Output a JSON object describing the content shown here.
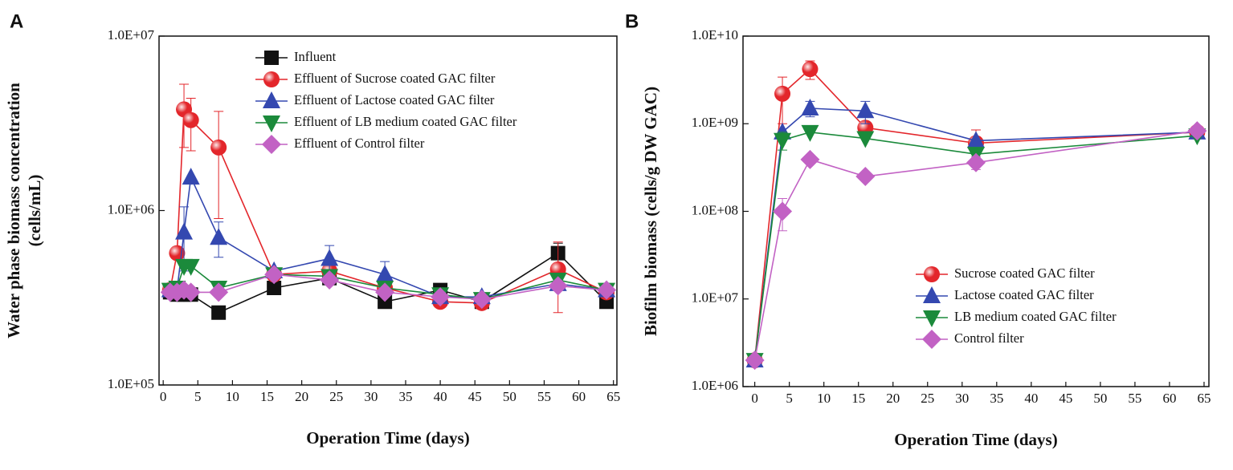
{
  "chart_data": [
    {
      "type": "line",
      "panel": "A",
      "x_label": "Operation Time (days)",
      "y_label": "Water phase biomass concentration (cells/mL)",
      "log_y": true,
      "legend": "upper center",
      "xlim": [
        -0.6,
        65.5
      ],
      "xticks": [
        0,
        5,
        10,
        15,
        20,
        25,
        30,
        35,
        40,
        45,
        50,
        55,
        60,
        65
      ],
      "ylim": [
        100000,
        10000000
      ],
      "yticks": [
        {
          "value": 100000,
          "label": "1.0E+05"
        },
        {
          "value": 1000000,
          "label": "1.0E+06"
        },
        {
          "value": 10000000,
          "label": "1.0E+07"
        }
      ],
      "x": [
        1,
        2,
        3,
        4,
        8,
        16,
        24,
        32,
        40,
        46,
        57,
        64
      ],
      "series": [
        {
          "name": "Influent",
          "color": "#111111",
          "marker": "square",
          "values": [
            340000,
            330000,
            330000,
            330000,
            260000,
            360000,
            410000,
            300000,
            350000,
            300000,
            570000,
            300000
          ],
          "errors": [
            null,
            null,
            null,
            null,
            null,
            null,
            null,
            null,
            null,
            null,
            80000,
            null
          ]
        },
        {
          "name": "Effluent of Sucrose coated GAC filter",
          "color": "#e3262b",
          "marker": "circle",
          "values": [
            350000,
            570000,
            3800000,
            3300000,
            2300000,
            430000,
            450000,
            360000,
            300000,
            295000,
            460000,
            340000
          ],
          "errors": [
            null,
            null,
            1500000,
            1100000,
            1400000,
            null,
            null,
            null,
            null,
            null,
            200000,
            null
          ]
        },
        {
          "name": "Effluent of Lactose coated GAC filter",
          "color": "#3448b0",
          "marker": "triangle-up",
          "values": [
            350000,
            350000,
            750000,
            1550000,
            700000,
            450000,
            530000,
            430000,
            320000,
            320000,
            380000,
            350000
          ],
          "errors": [
            null,
            null,
            300000,
            null,
            160000,
            null,
            100000,
            80000,
            null,
            null,
            null,
            null
          ]
        },
        {
          "name": "Effluent of LB medium coated GAC filter",
          "color": "#1b8a3b",
          "marker": "triangle-down",
          "values": [
            350000,
            360000,
            480000,
            480000,
            360000,
            430000,
            420000,
            360000,
            330000,
            310000,
            400000,
            350000
          ],
          "errors": [
            null,
            null,
            null,
            null,
            null,
            null,
            null,
            null,
            null,
            null,
            null,
            null
          ]
        },
        {
          "name": "Effluent of Control filter",
          "color": "#c262c4",
          "marker": "diamond",
          "values": [
            340000,
            340000,
            350000,
            340000,
            340000,
            430000,
            400000,
            340000,
            320000,
            310000,
            370000,
            350000
          ],
          "errors": [
            null,
            null,
            null,
            null,
            null,
            null,
            null,
            null,
            null,
            null,
            null,
            null
          ]
        }
      ]
    },
    {
      "type": "line",
      "panel": "B",
      "x_label": "Operation Time (days)",
      "y_label": "Biofilm biomass (cells/g DW GAC)",
      "log_y": true,
      "legend": "lower right",
      "xlim": [
        -1.7,
        65.7
      ],
      "xticks": [
        0,
        5,
        10,
        15,
        20,
        25,
        30,
        35,
        40,
        45,
        50,
        55,
        60,
        65
      ],
      "ylim": [
        1000000,
        10000000000
      ],
      "yticks": [
        {
          "value": 1000000,
          "label": "1.0E+06"
        },
        {
          "value": 10000000,
          "label": "1.0E+07"
        },
        {
          "value": 100000000,
          "label": "1.0E+08"
        },
        {
          "value": 1000000000,
          "label": "1.0E+09"
        },
        {
          "value": 10000000000,
          "label": "1.0E+10"
        }
      ],
      "x": [
        0,
        4,
        8,
        16,
        32,
        64
      ],
      "series": [
        {
          "name": "Sucrose coated GAC filter",
          "color": "#e3262b",
          "marker": "circle",
          "values": [
            2000000,
            2200000000,
            4200000000,
            900000000,
            600000000,
            800000000
          ],
          "errors": [
            null,
            1200000000,
            1000000000,
            null,
            250000000,
            null
          ]
        },
        {
          "name": "Lactose coated GAC filter",
          "color": "#3448b0",
          "marker": "triangle-up",
          "values": [
            2000000,
            800000000,
            1500000000,
            1400000000,
            640000000,
            800000000
          ],
          "errors": [
            null,
            null,
            300000000,
            400000000,
            null,
            null
          ]
        },
        {
          "name": "LB medium coated GAC filter",
          "color": "#1b8a3b",
          "marker": "triangle-down",
          "values": [
            2000000,
            650000000,
            800000000,
            680000000,
            450000000,
            730000000
          ],
          "errors": [
            null,
            150000000,
            null,
            null,
            null,
            null
          ]
        },
        {
          "name": "Control filter",
          "color": "#c262c4",
          "marker": "diamond",
          "values": [
            2000000,
            100000000,
            390000000,
            250000000,
            360000000,
            830000000
          ],
          "errors": [
            null,
            40000000,
            null,
            null,
            60000000,
            null
          ]
        }
      ]
    }
  ]
}
